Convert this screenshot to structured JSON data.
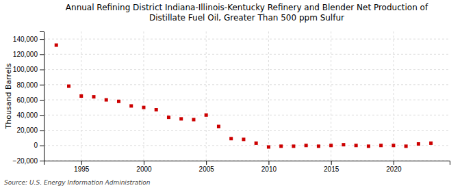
{
  "chart_data": {
    "type": "scatter",
    "title": "Annual Refining District Indiana-Illinois-Kentucky Refinery and Blender Net Production of\nDistillate Fuel Oil, Greater Than 500 ppm Sulfur",
    "ylabel": "Thousand Barrels",
    "annotation": "Source: U.S. Energy Information Administration",
    "x": [
      1993,
      1994,
      1995,
      1996,
      1997,
      1998,
      1999,
      2000,
      2001,
      2002,
      2003,
      2004,
      2005,
      2006,
      2007,
      2008,
      2009,
      2010,
      2011,
      2012,
      2013,
      2014,
      2015,
      2016,
      2017,
      2018,
      2019,
      2020,
      2021,
      2022,
      2023
    ],
    "values": [
      132000,
      78000,
      65000,
      64000,
      60000,
      58000,
      52000,
      50000,
      47000,
      37000,
      35000,
      34000,
      40000,
      25000,
      9000,
      8000,
      3000,
      -2000,
      -1000,
      -1000,
      0,
      -1000,
      0,
      1000,
      0,
      -1000,
      0,
      0,
      -1000,
      2000,
      3000
    ],
    "color": "#cc0000",
    "marker": "square",
    "xlim": [
      1992,
      2024.5
    ],
    "xticks": [
      1995,
      2000,
      2005,
      2010,
      2015,
      2020
    ],
    "ylim": [
      -20000,
      150000
    ],
    "yticks": [
      {
        "value": -20000,
        "label": "−20,000"
      },
      0,
      {
        "value": 20000,
        "label": "20,000"
      },
      {
        "value": 40000,
        "label": "40,000"
      },
      {
        "value": 60000,
        "label": "60,000"
      },
      {
        "value": 80000,
        "label": "80,000"
      },
      {
        "value": 100000,
        "label": "100,000"
      },
      {
        "value": 120000,
        "label": "120,000"
      },
      {
        "value": 140000,
        "label": "140,000"
      }
    ],
    "grid": true
  }
}
